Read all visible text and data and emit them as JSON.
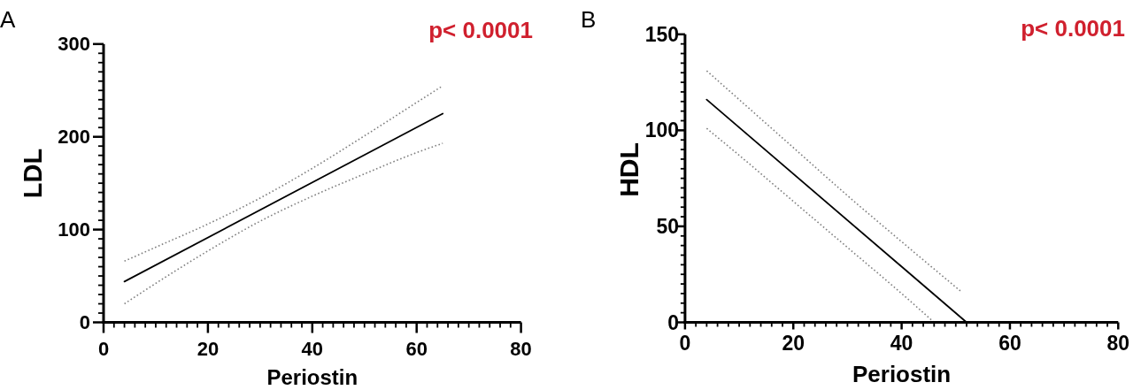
{
  "chart_data": [
    {
      "type": "line",
      "title": "A",
      "xlabel": "Periostin",
      "ylabel": "LDL",
      "annotations": [
        "p< 0.0001"
      ],
      "xlim": [
        0,
        80
      ],
      "ylim": [
        0,
        300
      ],
      "xticks": [
        0,
        {
          "value": 2,
          "label": null
        },
        {
          "value": 4,
          "label": null
        },
        {
          "value": 6,
          "label": null
        },
        {
          "value": 8,
          "label": null
        },
        {
          "value": 10,
          "label": null
        },
        {
          "value": 12,
          "label": null
        },
        {
          "value": 14,
          "label": null
        },
        {
          "value": 16,
          "label": null
        },
        {
          "value": 18,
          "label": null
        },
        20,
        {
          "value": 22,
          "label": null
        },
        {
          "value": 24,
          "label": null
        },
        {
          "value": 26,
          "label": null
        },
        {
          "value": 28,
          "label": null
        },
        {
          "value": 30,
          "label": null
        },
        {
          "value": 32,
          "label": null
        },
        {
          "value": 34,
          "label": null
        },
        {
          "value": 36,
          "label": null
        },
        {
          "value": 38,
          "label": null
        },
        40,
        {
          "value": 42,
          "label": null
        },
        {
          "value": 44,
          "label": null
        },
        {
          "value": 46,
          "label": null
        },
        {
          "value": 48,
          "label": null
        },
        {
          "value": 50,
          "label": null
        },
        {
          "value": 52,
          "label": null
        },
        {
          "value": 54,
          "label": null
        },
        {
          "value": 56,
          "label": null
        },
        {
          "value": 58,
          "label": null
        },
        60,
        {
          "value": 62,
          "label": null
        },
        {
          "value": 64,
          "label": null
        },
        {
          "value": 66,
          "label": null
        },
        {
          "value": 68,
          "label": null
        },
        {
          "value": 70,
          "label": null
        },
        {
          "value": 72,
          "label": null
        },
        {
          "value": 74,
          "label": null
        },
        {
          "value": 76,
          "label": null
        },
        {
          "value": 78,
          "label": null
        },
        80
      ],
      "yticks": [
        0,
        {
          "value": 10,
          "label": null
        },
        {
          "value": 20,
          "label": null
        },
        {
          "value": 30,
          "label": null
        },
        {
          "value": 40,
          "label": null
        },
        {
          "value": 50,
          "label": null
        },
        {
          "value": 60,
          "label": null
        },
        {
          "value": 70,
          "label": null
        },
        {
          "value": 80,
          "label": null
        },
        {
          "value": 90,
          "label": null
        },
        100,
        {
          "value": 110,
          "label": null
        },
        {
          "value": 120,
          "label": null
        },
        {
          "value": 130,
          "label": null
        },
        {
          "value": 140,
          "label": null
        },
        {
          "value": 150,
          "label": null
        },
        {
          "value": 160,
          "label": null
        },
        {
          "value": 170,
          "label": null
        },
        {
          "value": 180,
          "label": null
        },
        {
          "value": 190,
          "label": null
        },
        200,
        {
          "value": 210,
          "label": null
        },
        {
          "value": 220,
          "label": null
        },
        {
          "value": 230,
          "label": null
        },
        {
          "value": 240,
          "label": null
        },
        {
          "value": 250,
          "label": null
        },
        {
          "value": 260,
          "label": null
        },
        {
          "value": 270,
          "label": null
        },
        {
          "value": 280,
          "label": null
        },
        {
          "value": 290,
          "label": null
        },
        300
      ],
      "series": [
        {
          "color": "#000000",
          "line_style": "solid",
          "x": [
            4,
            65
          ],
          "values": [
            44,
            225
          ]
        },
        {
          "color": "#808080",
          "line_style": "dotted",
          "x": [
            4,
            10,
            20,
            30,
            40,
            50,
            60,
            65
          ],
          "values": [
            66,
            81,
            106,
            134,
            166,
            201,
            237,
            255
          ]
        },
        {
          "color": "#808080",
          "line_style": "dotted",
          "x": [
            4,
            10,
            20,
            30,
            40,
            50,
            60,
            65
          ],
          "values": [
            20,
            42,
            77,
            109,
            136,
            160,
            183,
            193
          ]
        }
      ]
    },
    {
      "type": "line",
      "title": "B",
      "xlabel": "Periostin",
      "ylabel": "HDL",
      "annotations": [
        "p< 0.0001"
      ],
      "xlim": [
        0,
        80
      ],
      "ylim": [
        0,
        150
      ],
      "xticks": [
        0,
        {
          "value": 2,
          "label": null
        },
        {
          "value": 4,
          "label": null
        },
        {
          "value": 6,
          "label": null
        },
        {
          "value": 8,
          "label": null
        },
        {
          "value": 10,
          "label": null
        },
        {
          "value": 12,
          "label": null
        },
        {
          "value": 14,
          "label": null
        },
        {
          "value": 16,
          "label": null
        },
        {
          "value": 18,
          "label": null
        },
        20,
        {
          "value": 22,
          "label": null
        },
        {
          "value": 24,
          "label": null
        },
        {
          "value": 26,
          "label": null
        },
        {
          "value": 28,
          "label": null
        },
        {
          "value": 30,
          "label": null
        },
        {
          "value": 32,
          "label": null
        },
        {
          "value": 34,
          "label": null
        },
        {
          "value": 36,
          "label": null
        },
        {
          "value": 38,
          "label": null
        },
        40,
        {
          "value": 42,
          "label": null
        },
        {
          "value": 44,
          "label": null
        },
        {
          "value": 46,
          "label": null
        },
        {
          "value": 48,
          "label": null
        },
        {
          "value": 50,
          "label": null
        },
        {
          "value": 52,
          "label": null
        },
        {
          "value": 54,
          "label": null
        },
        {
          "value": 56,
          "label": null
        },
        {
          "value": 58,
          "label": null
        },
        60,
        {
          "value": 62,
          "label": null
        },
        {
          "value": 64,
          "label": null
        },
        {
          "value": 66,
          "label": null
        },
        {
          "value": 68,
          "label": null
        },
        {
          "value": 70,
          "label": null
        },
        {
          "value": 72,
          "label": null
        },
        {
          "value": 74,
          "label": null
        },
        {
          "value": 76,
          "label": null
        },
        {
          "value": 78,
          "label": null
        },
        80
      ],
      "yticks": [
        0,
        {
          "value": 5,
          "label": null
        },
        {
          "value": 10,
          "label": null
        },
        {
          "value": 15,
          "label": null
        },
        {
          "value": 20,
          "label": null
        },
        {
          "value": 25,
          "label": null
        },
        {
          "value": 30,
          "label": null
        },
        {
          "value": 35,
          "label": null
        },
        {
          "value": 40,
          "label": null
        },
        {
          "value": 45,
          "label": null
        },
        50,
        {
          "value": 55,
          "label": null
        },
        {
          "value": 60,
          "label": null
        },
        {
          "value": 65,
          "label": null
        },
        {
          "value": 70,
          "label": null
        },
        {
          "value": 75,
          "label": null
        },
        {
          "value": 80,
          "label": null
        },
        {
          "value": 85,
          "label": null
        },
        {
          "value": 90,
          "label": null
        },
        {
          "value": 95,
          "label": null
        },
        100,
        {
          "value": 105,
          "label": null
        },
        {
          "value": 110,
          "label": null
        },
        {
          "value": 115,
          "label": null
        },
        {
          "value": 120,
          "label": null
        },
        {
          "value": 125,
          "label": null
        },
        {
          "value": 130,
          "label": null
        },
        {
          "value": 135,
          "label": null
        },
        {
          "value": 140,
          "label": null
        },
        {
          "value": 145,
          "label": null
        },
        150
      ],
      "series": [
        {
          "color": "#000000",
          "line_style": "solid",
          "x": [
            4,
            52
          ],
          "values": [
            116,
            0
          ]
        },
        {
          "color": "#808080",
          "line_style": "dotted",
          "x": [
            4,
            10,
            20,
            30,
            40,
            51
          ],
          "values": [
            131,
            116,
            91,
            66,
            42,
            16
          ]
        },
        {
          "color": "#808080",
          "line_style": "dotted",
          "x": [
            4,
            10,
            20,
            30,
            40,
            46
          ],
          "values": [
            101,
            87,
            63,
            39,
            15,
            0
          ]
        }
      ]
    }
  ]
}
